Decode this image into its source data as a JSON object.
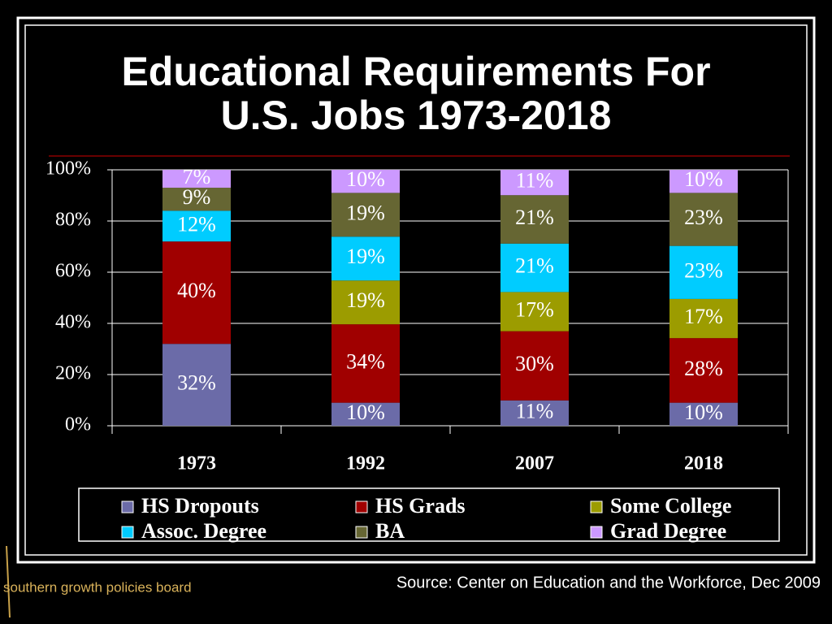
{
  "chart_data": {
    "type": "bar",
    "stack": "percent",
    "title": [
      "Educational Requirements For",
      "U.S. Jobs 1973-2018"
    ],
    "categories": [
      "1973",
      "1992",
      "2007",
      "2018"
    ],
    "series": [
      {
        "name": "HS Dropouts",
        "color": "#6b6ba8",
        "values": [
          32,
          10,
          11,
          10
        ],
        "value_labels": [
          "32%",
          "10%",
          "11%",
          "10%"
        ]
      },
      {
        "name": "HS Grads",
        "color": "#a00000",
        "values": [
          40,
          34,
          30,
          28
        ],
        "value_labels": [
          "40%",
          "34%",
          "30%",
          "28%"
        ]
      },
      {
        "name": "Some College",
        "color": "#9c9c00",
        "values": [
          null,
          19,
          17,
          17
        ],
        "value_labels": [
          null,
          "19%",
          "17%",
          "17%"
        ]
      },
      {
        "name": "Assoc. Degree",
        "color": "#00ccff",
        "values": [
          12,
          19,
          21,
          23
        ],
        "value_labels": [
          "12%",
          "19%",
          "21%",
          "23%"
        ]
      },
      {
        "name": "BA",
        "color": "#666633",
        "values": [
          9,
          19,
          21,
          23
        ],
        "value_labels": [
          "9%",
          "19%",
          "21%",
          "23%"
        ]
      },
      {
        "name": "Grad Degree",
        "color": "#cc99ff",
        "values": [
          7,
          10,
          11,
          10
        ],
        "value_labels": [
          "7%",
          "10%",
          "11%",
          "10%"
        ]
      }
    ],
    "ylim": [
      0,
      100
    ],
    "yticks": [
      {
        "value": 0,
        "label": "0%"
      },
      {
        "value": 20,
        "label": "20%"
      },
      {
        "value": 40,
        "label": "40%"
      },
      {
        "value": 60,
        "label": "60%"
      },
      {
        "value": 80,
        "label": "80%"
      },
      {
        "value": 100,
        "label": "100%"
      }
    ],
    "grid": true,
    "legend": "bottom",
    "source": "Source: Center on Education and the Workforce, Dec 2009",
    "logo": "southern growth policies board"
  }
}
